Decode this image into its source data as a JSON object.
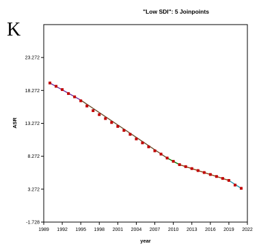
{
  "panel_letter": "K",
  "chart_data": {
    "type": "scatter",
    "title": "\"Low SDI\": 5 Joinpoints",
    "xlabel": "year",
    "ylabel": "ASR",
    "xlim": [
      1989,
      2022
    ],
    "ylim": [
      -1.728,
      28.272
    ],
    "x_ticks": [
      1989,
      1992,
      1995,
      1998,
      2001,
      2004,
      2007,
      2010,
      2013,
      2016,
      2019,
      2022
    ],
    "y_ticks": [
      -1.728,
      3.272,
      8.272,
      13.272,
      18.272,
      23.272
    ],
    "y_tick_labels": [
      "-1.728",
      "3.272",
      "8.272",
      "13.272",
      "18.272",
      "23.272"
    ],
    "grid": false,
    "legend": "none",
    "series": [
      {
        "kind": "observed",
        "marker_color": "#c00000",
        "x": [
          1990,
          1991,
          1992,
          1993,
          1994,
          1995,
          1996,
          1997,
          1998,
          1999,
          2000,
          2001,
          2002,
          2003,
          2004,
          2005,
          2006,
          2007,
          2008,
          2009,
          2010,
          2011,
          2012,
          2013,
          2014,
          2015,
          2016,
          2017,
          2018,
          2019,
          2020,
          2021
        ],
        "y": [
          19.4,
          18.9,
          18.4,
          17.8,
          17.3,
          16.7,
          15.9,
          15.2,
          14.6,
          14.0,
          13.4,
          12.8,
          12.2,
          11.6,
          10.9,
          10.3,
          9.7,
          9.1,
          8.6,
          8.0,
          7.5,
          7.0,
          6.7,
          6.4,
          6.1,
          5.8,
          5.5,
          5.2,
          4.9,
          4.6,
          3.9,
          3.4
        ]
      },
      {
        "kind": "fitted",
        "segments": [
          {
            "x": [
              1990,
              1995
            ],
            "y": [
              19.4,
              16.8
            ],
            "color": "#7030a0"
          },
          {
            "x": [
              1995,
              2009
            ],
            "y": [
              16.8,
              8.0
            ],
            "color": "#6b4a2a"
          },
          {
            "x": [
              2009,
              2011
            ],
            "y": [
              8.0,
              7.0
            ],
            "color": "#008000"
          },
          {
            "x": [
              2011,
              2019
            ],
            "y": [
              7.0,
              4.6
            ],
            "color": "#8b4513"
          },
          {
            "x": [
              2019,
              2021
            ],
            "y": [
              4.6,
              3.4
            ],
            "color": "#1f9bb5"
          }
        ]
      }
    ]
  }
}
